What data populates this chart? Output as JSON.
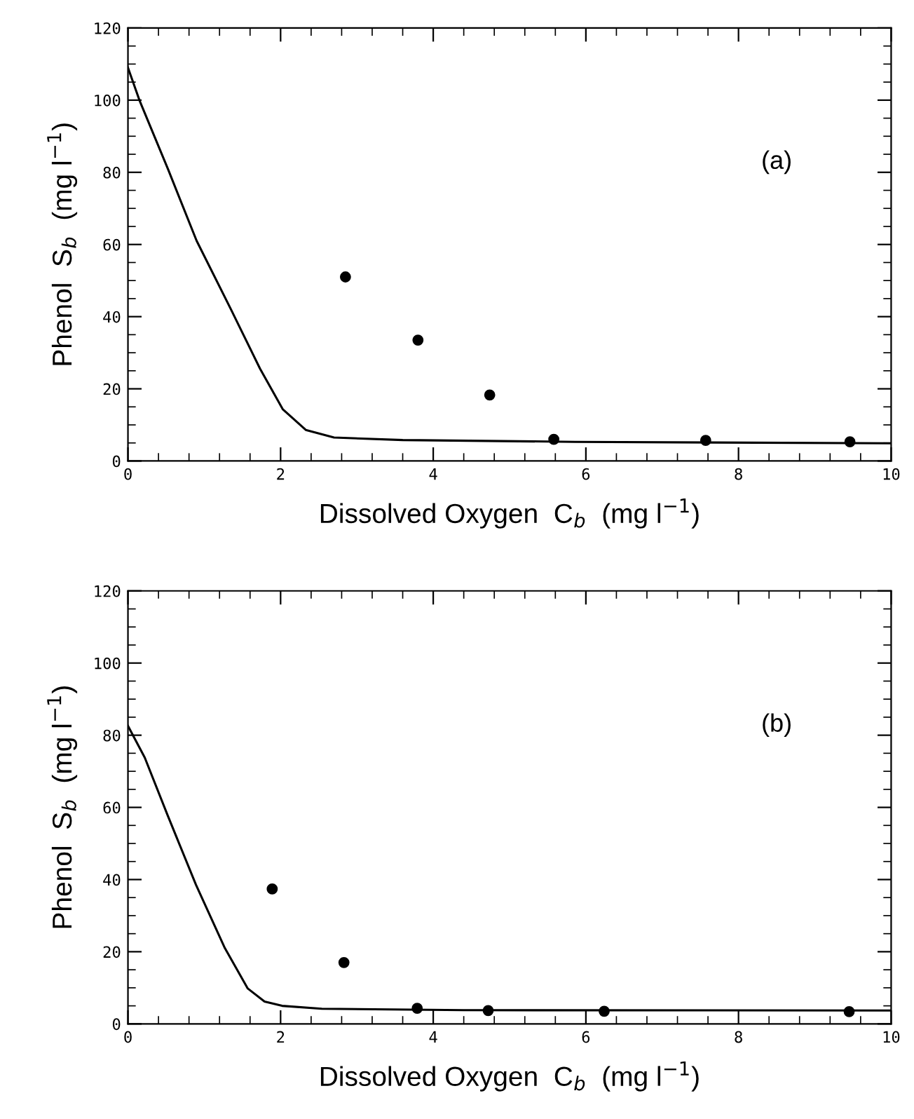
{
  "chart_data": [
    {
      "type": "scatter",
      "xlabel": "Dissolved Oxygen  C$_{b}$  (mg l$^{−1}$)",
      "ylabel": "Phenol  S$_{b}$  (mg l$^{−1}$)",
      "annotations": [
        "(a)"
      ],
      "xlim": [
        0,
        10
      ],
      "ylim": [
        0,
        120
      ],
      "xticks": [
        0,
        2,
        4,
        6,
        8,
        10
      ],
      "yticks": [
        0,
        20,
        40,
        60,
        80,
        100,
        120
      ],
      "grid": false,
      "series": [
        {
          "marker": "circle",
          "color": "#000000",
          "x": [
            2.85,
            3.8,
            4.74,
            5.58,
            7.57,
            9.46
          ],
          "values": [
            51,
            33.5,
            18.3,
            6.0,
            5.7,
            5.3
          ]
        },
        {
          "type": "line",
          "color": "#000000",
          "line_style": "solid",
          "x": [
            0,
            0.15,
            0.53,
            0.9,
            1.35,
            1.73,
            2.03,
            2.33,
            2.7,
            3.6,
            5.86,
            10
          ],
          "values": [
            109,
            100,
            80.6,
            61,
            42,
            25.6,
            14.3,
            8.6,
            6.5,
            5.8,
            5.3,
            4.9
          ]
        }
      ]
    },
    {
      "type": "scatter",
      "xlabel": "Dissolved Oxygen  C$_{b}$  (mg l$^{−1}$)",
      "ylabel": "Phenol  S$_{b}$  (mg l$^{−1}$)",
      "annotations": [
        "(b)"
      ],
      "xlim": [
        0,
        10
      ],
      "ylim": [
        0,
        120
      ],
      "xticks": [
        0,
        2,
        4,
        6,
        8,
        10
      ],
      "yticks": [
        0,
        20,
        40,
        60,
        80,
        100,
        120
      ],
      "grid": false,
      "series": [
        {
          "marker": "circle",
          "color": "#000000",
          "x": [
            1.89,
            2.83,
            3.79,
            4.72,
            6.24,
            9.45
          ],
          "values": [
            37.4,
            17.0,
            4.3,
            3.7,
            3.5,
            3.4
          ]
        },
        {
          "type": "line",
          "color": "#000000",
          "line_style": "solid",
          "x": [
            0,
            0.22,
            0.52,
            0.89,
            1.27,
            1.57,
            1.79,
            2.02,
            2.54,
            4.4,
            10
          ],
          "values": [
            82.6,
            73.8,
            57.8,
            38.6,
            21,
            9.8,
            6.2,
            5,
            4.2,
            3.8,
            3.7
          ]
        }
      ]
    }
  ]
}
